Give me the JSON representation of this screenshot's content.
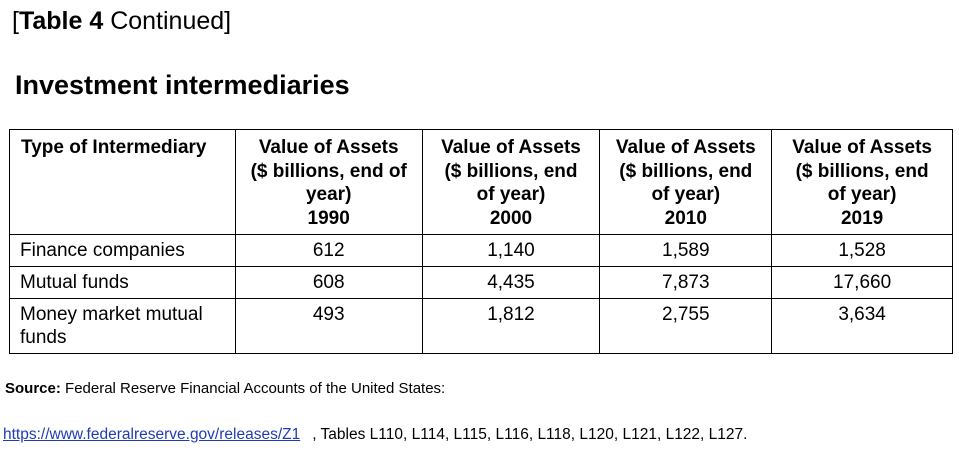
{
  "caption": {
    "open_bracket": "[",
    "bold": "Table 4",
    "rest": " Continued]"
  },
  "heading": "Investment intermediaries",
  "table": {
    "headers": [
      {
        "lines": [
          "Type of Intermediary"
        ]
      },
      {
        "lines": [
          "Value of Assets",
          "($ billions, end of",
          "year)",
          "1990"
        ]
      },
      {
        "lines": [
          "Value of Assets",
          "($ billions, end",
          "of year)",
          "2000"
        ]
      },
      {
        "lines": [
          "Value of Assets",
          "($ billions, end",
          "of year)",
          "2010"
        ]
      },
      {
        "lines": [
          "Value of Assets",
          "($ billions, end",
          "of year)",
          "2019"
        ]
      }
    ],
    "rows": [
      {
        "name_lines": [
          "Finance companies"
        ],
        "values": [
          "612",
          "1,140",
          "1,589",
          "1,528"
        ]
      },
      {
        "name_lines": [
          "Mutual funds"
        ],
        "values": [
          "608",
          "4,435",
          "7,873",
          "17,660"
        ]
      },
      {
        "name_lines": [
          "Money market mutual",
          "funds"
        ],
        "values": [
          "493",
          "1,812",
          "2,755",
          "3,634"
        ]
      }
    ]
  },
  "source": {
    "label": "Source:",
    "text": " Federal Reserve Financial Accounts of the United States:"
  },
  "link": {
    "text": "https://www.federalreserve.gov/releases/Z1",
    "rest": ", Tables L110, L114, L115, L116, L118, L120, L121, L122, L127."
  },
  "colors": {
    "link": "#1f3cb5",
    "text": "#000000",
    "border": "#000000"
  }
}
